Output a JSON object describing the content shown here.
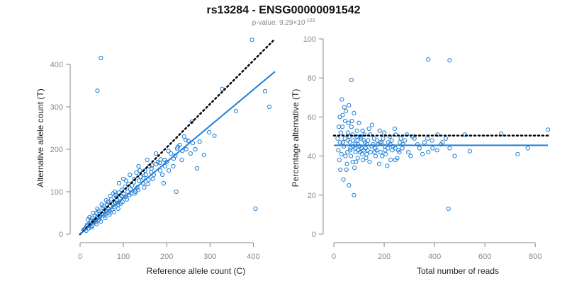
{
  "chart_data": {
    "title": "rs13284 - ENSG00000091542",
    "subtitle_prefix": "p-value: 9.29×10",
    "subtitle_exponent": "-103",
    "colors": {
      "points": "#1f7fd8",
      "fit": "#1f7fd8",
      "reference": "#000000",
      "axis": "#888888"
    },
    "panels": [
      {
        "type": "scatter",
        "xlabel": "Reference allele count (C)",
        "ylabel": "Alternative allele count (T)",
        "xlim": [
          0,
          450
        ],
        "ylim": [
          0,
          460
        ],
        "xticks": [
          0,
          100,
          200,
          300,
          400
        ],
        "yticks": [
          0,
          100,
          200,
          300,
          400
        ],
        "reference_line": {
          "x": [
            0,
            450
          ],
          "y": [
            0,
            460
          ]
        },
        "fit_line": {
          "x": [
            0,
            450
          ],
          "y": [
            0,
            383
          ]
        },
        "points": [
          [
            48,
            415
          ],
          [
            40,
            338
          ],
          [
            397,
            458
          ],
          [
            328,
            342
          ],
          [
            427,
            337
          ],
          [
            437,
            300
          ],
          [
            258,
            265
          ],
          [
            298,
            240
          ],
          [
            405,
            60
          ],
          [
            270,
            155
          ],
          [
            222,
            100
          ],
          [
            193,
            120
          ],
          [
            195,
            175
          ],
          [
            286,
            187
          ],
          [
            360,
            290
          ],
          [
            310,
            232
          ],
          [
            240,
            230
          ],
          [
            180,
            170
          ],
          [
            160,
            160
          ],
          [
            150,
            150
          ],
          [
            140,
            135
          ],
          [
            130,
            145
          ],
          [
            120,
            115
          ],
          [
            110,
            100
          ],
          [
            100,
            95
          ],
          [
            90,
            98
          ],
          [
            85,
            80
          ],
          [
            80,
            72
          ],
          [
            75,
            70
          ],
          [
            70,
            66
          ],
          [
            65,
            60
          ],
          [
            60,
            56
          ],
          [
            55,
            54
          ],
          [
            50,
            48
          ],
          [
            45,
            44
          ],
          [
            40,
            42
          ],
          [
            35,
            36
          ],
          [
            30,
            32
          ],
          [
            25,
            26
          ],
          [
            20,
            24
          ],
          [
            15,
            18
          ],
          [
            12,
            14
          ],
          [
            10,
            12
          ],
          [
            8,
            10
          ],
          [
            18,
            35
          ],
          [
            22,
            40
          ],
          [
            28,
            38
          ],
          [
            33,
            30
          ],
          [
            38,
            50
          ],
          [
            42,
            55
          ],
          [
            46,
            40
          ],
          [
            52,
            62
          ],
          [
            58,
            48
          ],
          [
            62,
            70
          ],
          [
            68,
            55
          ],
          [
            72,
            82
          ],
          [
            78,
            64
          ],
          [
            82,
            92
          ],
          [
            88,
            70
          ],
          [
            92,
            85
          ],
          [
            96,
            104
          ],
          [
            105,
            88
          ],
          [
            112,
            118
          ],
          [
            118,
            96
          ],
          [
            125,
            130
          ],
          [
            132,
            110
          ],
          [
            138,
            150
          ],
          [
            145,
            120
          ],
          [
            152,
            140
          ],
          [
            158,
            128
          ],
          [
            165,
            155
          ],
          [
            170,
            140
          ],
          [
            175,
            165
          ],
          [
            185,
            150
          ],
          [
            200,
            170
          ],
          [
            210,
            190
          ],
          [
            220,
            185
          ],
          [
            230,
            210
          ],
          [
            245,
            200
          ],
          [
            250,
            220
          ],
          [
            260,
            215
          ],
          [
            255,
            190
          ],
          [
            235,
            175
          ],
          [
            215,
            160
          ],
          [
            205,
            150
          ],
          [
            190,
            140
          ],
          [
            168,
            130
          ],
          [
            148,
            110
          ],
          [
            128,
            100
          ],
          [
            108,
            82
          ],
          [
            98,
            76
          ],
          [
            88,
            60
          ],
          [
            78,
            52
          ],
          [
            68,
            46
          ],
          [
            58,
            38
          ],
          [
            48,
            30
          ],
          [
            38,
            24
          ],
          [
            28,
            20
          ],
          [
            20,
            14
          ],
          [
            14,
            8
          ],
          [
            30,
            50
          ],
          [
            40,
            60
          ],
          [
            50,
            70
          ],
          [
            60,
            80
          ],
          [
            70,
            90
          ],
          [
            80,
            100
          ],
          [
            90,
            120
          ],
          [
            100,
            130
          ],
          [
            115,
            140
          ],
          [
            135,
            160
          ],
          [
            155,
            175
          ],
          [
            175,
            190
          ],
          [
            24,
            30
          ],
          [
            34,
            44
          ],
          [
            44,
            34
          ],
          [
            54,
            66
          ],
          [
            64,
            76
          ],
          [
            74,
            58
          ],
          [
            84,
            88
          ],
          [
            94,
            72
          ],
          [
            104,
            112
          ],
          [
            114,
            92
          ],
          [
            124,
            122
          ],
          [
            134,
            104
          ],
          [
            144,
            144
          ],
          [
            164,
            146
          ],
          [
            184,
            168
          ],
          [
            204,
            196
          ],
          [
            224,
            202
          ],
          [
            244,
            222
          ],
          [
            16,
            22
          ],
          [
            26,
            16
          ],
          [
            36,
            28
          ],
          [
            56,
            44
          ],
          [
            66,
            50
          ],
          [
            76,
            96
          ],
          [
            86,
            74
          ],
          [
            96,
            90
          ],
          [
            106,
            126
          ],
          [
            116,
            106
          ],
          [
            126,
            96
          ],
          [
            136,
            126
          ],
          [
            146,
            132
          ],
          [
            156,
            118
          ],
          [
            166,
            162
          ],
          [
            186,
            176
          ],
          [
            196,
            160
          ],
          [
            216,
            178
          ],
          [
            226,
            206
          ],
          [
            236,
            196
          ],
          [
            276,
            218
          ],
          [
            266,
            200
          ]
        ]
      },
      {
        "type": "scatter",
        "xlabel": "Total number of reads",
        "ylabel": "Percentage alternative (T)",
        "xlim": [
          0,
          850
        ],
        "ylim": [
          0,
          100
        ],
        "xticks": [
          0,
          200,
          400,
          600,
          800
        ],
        "yticks": [
          0,
          20,
          40,
          60,
          80,
          100
        ],
        "reference_line": {
          "x": [
            0,
            850
          ],
          "y": [
            50.5,
            50.5
          ]
        },
        "fit_line": {
          "x": [
            0,
            850
          ],
          "y": [
            45.5,
            45.5
          ]
        },
        "points": [
          [
            375,
            89.5
          ],
          [
            460,
            89
          ],
          [
            455,
            13
          ],
          [
            80,
            20
          ],
          [
            60,
            25
          ],
          [
            70,
            79
          ],
          [
            850,
            53.5
          ],
          [
            770,
            44
          ],
          [
            730,
            41
          ],
          [
            665,
            51.5
          ],
          [
            520,
            51
          ],
          [
            540,
            42.5
          ],
          [
            480,
            40
          ],
          [
            460,
            44
          ],
          [
            445,
            49
          ],
          [
            425,
            46
          ],
          [
            410,
            43
          ],
          [
            390,
            48
          ],
          [
            375,
            42
          ],
          [
            360,
            47
          ],
          [
            340,
            44
          ],
          [
            320,
            49
          ],
          [
            305,
            40
          ],
          [
            290,
            51
          ],
          [
            275,
            46
          ],
          [
            260,
            42
          ],
          [
            245,
            38
          ],
          [
            230,
            48
          ],
          [
            215,
            44
          ],
          [
            200,
            52
          ],
          [
            190,
            47
          ],
          [
            180,
            36
          ],
          [
            170,
            43
          ],
          [
            160,
            49
          ],
          [
            150,
            45
          ],
          [
            140,
            54
          ],
          [
            130,
            41
          ],
          [
            120,
            48
          ],
          [
            110,
            44
          ],
          [
            100,
            57
          ],
          [
            95,
            39
          ],
          [
            90,
            50
          ],
          [
            85,
            46
          ],
          [
            80,
            62
          ],
          [
            75,
            37
          ],
          [
            70,
            55
          ],
          [
            65,
            43
          ],
          [
            60,
            66
          ],
          [
            55,
            48
          ],
          [
            50,
            33
          ],
          [
            45,
            58
          ],
          [
            40,
            45
          ],
          [
            35,
            61
          ],
          [
            30,
            41
          ],
          [
            28,
            52
          ],
          [
            25,
            47
          ],
          [
            22,
            38
          ],
          [
            20,
            55
          ],
          [
            18,
            43
          ],
          [
            15,
            49
          ],
          [
            32,
            69
          ],
          [
            42,
            65
          ],
          [
            52,
            36
          ],
          [
            62,
            50
          ],
          [
            72,
            58
          ],
          [
            82,
            34
          ],
          [
            92,
            53
          ],
          [
            102,
            45
          ],
          [
            112,
            41
          ],
          [
            122,
            51
          ],
          [
            132,
            46
          ],
          [
            142,
            37
          ],
          [
            152,
            56
          ],
          [
            162,
            42
          ],
          [
            172,
            48
          ],
          [
            182,
            53
          ],
          [
            192,
            40
          ],
          [
            202,
            45
          ],
          [
            212,
            35
          ],
          [
            222,
            50
          ],
          [
            232,
            43
          ],
          [
            242,
            54
          ],
          [
            252,
            39
          ],
          [
            262,
            47
          ],
          [
            272,
            44
          ],
          [
            282,
            48
          ],
          [
            296,
            42
          ],
          [
            312,
            50
          ],
          [
            332,
            46
          ],
          [
            352,
            41
          ],
          [
            372,
            49
          ],
          [
            392,
            44
          ],
          [
            412,
            51
          ],
          [
            432,
            47
          ],
          [
            36,
            47
          ],
          [
            46,
            40
          ],
          [
            56,
            52
          ],
          [
            66,
            44
          ],
          [
            76,
            48
          ],
          [
            86,
            42
          ],
          [
            96,
            46
          ],
          [
            106,
            50
          ],
          [
            116,
            38
          ],
          [
            126,
            44
          ],
          [
            136,
            48
          ],
          [
            146,
            42
          ],
          [
            156,
            46
          ],
          [
            166,
            40
          ],
          [
            176,
            46
          ],
          [
            186,
            42
          ],
          [
            196,
            49
          ],
          [
            206,
            41
          ],
          [
            216,
            47
          ],
          [
            226,
            38
          ],
          [
            236,
            45
          ],
          [
            246,
            51
          ],
          [
            256,
            43
          ],
          [
            266,
            49
          ],
          [
            24,
            60
          ],
          [
            34,
            55
          ],
          [
            44,
            49
          ],
          [
            54,
            42
          ],
          [
            64,
            47
          ],
          [
            74,
            51
          ],
          [
            84,
            44
          ],
          [
            94,
            48
          ],
          [
            104,
            42
          ],
          [
            114,
            53
          ],
          [
            124,
            47
          ],
          [
            134,
            43
          ],
          [
            144,
            51
          ],
          [
            164,
            44
          ],
          [
            184,
            47
          ],
          [
            204,
            43
          ],
          [
            224,
            46
          ],
          [
            244,
            44
          ],
          [
            26,
            33
          ],
          [
            38,
            28
          ],
          [
            48,
            63
          ],
          [
            58,
            57
          ],
          [
            68,
            40
          ],
          [
            78,
            45
          ],
          [
            88,
            37
          ],
          [
            98,
            43
          ],
          [
            108,
            49
          ],
          [
            118,
            43
          ],
          [
            128,
            39
          ]
        ]
      }
    ]
  }
}
